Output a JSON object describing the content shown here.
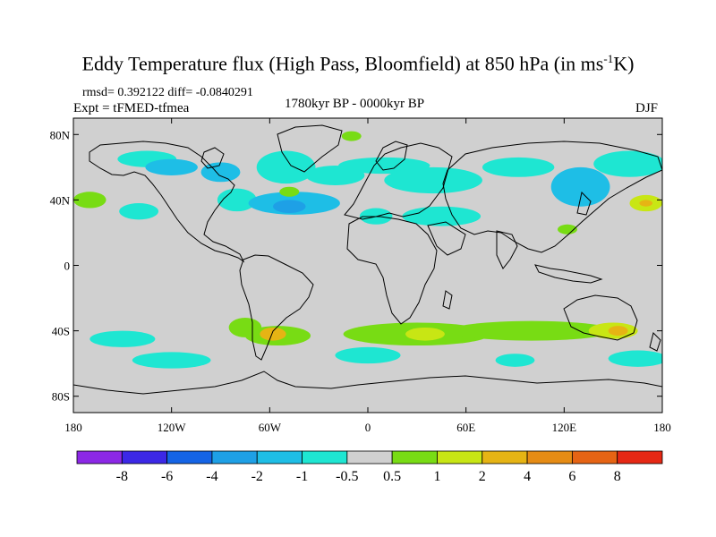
{
  "title": "Eddy Temperature flux (High Pass, Bloomfield) at 850 hPa (in ms",
  "title_sup": "-1",
  "title_end": "K)",
  "stats": "rmsd= 0.392122 diff= -0.0840291",
  "experiment": "Expt = tFMED-tfmea",
  "period": "1780kyr BP - 0000kyr BP",
  "season": "DJF",
  "map": {
    "lon_range": [
      -180,
      180
    ],
    "lat_range": [
      -90,
      90
    ],
    "lon_ticks": [
      "180",
      "120W",
      "60W",
      "0",
      "60E",
      "120E",
      "180"
    ],
    "lat_ticks": [
      "80N",
      "40N",
      "0",
      "40S",
      "80S"
    ],
    "background_color": "#d0d0d0"
  },
  "colorbar": {
    "labels": [
      "-8",
      "-6",
      "-4",
      "-2",
      "-1",
      "-0.5",
      "0.5",
      "1",
      "2",
      "4",
      "6",
      "8"
    ],
    "colors": [
      "#8c28e6",
      "#3c28e6",
      "#1464e6",
      "#1ea0e6",
      "#1ebee6",
      "#1ee6d2",
      "#d0d0d0",
      "#78dc14",
      "#c8e614",
      "#e6b414",
      "#e68c14",
      "#e66414",
      "#e62814"
    ]
  },
  "anomalies": [
    {
      "lon": -135,
      "lat": 65,
      "rlon": 18,
      "rlat": 5,
      "value": -0.7
    },
    {
      "lon": -120,
      "lat": 60,
      "rlon": 16,
      "rlat": 5,
      "value": -1.5
    },
    {
      "lon": -90,
      "lat": 57,
      "rlon": 12,
      "rlat": 6,
      "value": -1.5
    },
    {
      "lon": -80,
      "lat": 40,
      "rlon": 12,
      "rlat": 7,
      "value": -0.7
    },
    {
      "lon": -45,
      "lat": 38,
      "rlon": 28,
      "rlat": 7,
      "value": -1.2
    },
    {
      "lon": -48,
      "lat": 36,
      "rlon": 10,
      "rlat": 4,
      "value": -2.5
    },
    {
      "lon": -50,
      "lat": 60,
      "rlon": 18,
      "rlat": 10,
      "value": -0.7
    },
    {
      "lon": -20,
      "lat": 55,
      "rlon": 18,
      "rlat": 6,
      "value": -0.7
    },
    {
      "lon": 10,
      "lat": 61,
      "rlon": 28,
      "rlat": 5,
      "value": -0.7
    },
    {
      "lon": 40,
      "lat": 52,
      "rlon": 30,
      "rlat": 8,
      "value": -0.7
    },
    {
      "lon": 92,
      "lat": 60,
      "rlon": 22,
      "rlat": 6,
      "value": -0.7
    },
    {
      "lon": 130,
      "lat": 48,
      "rlon": 18,
      "rlat": 12,
      "value": -1.2
    },
    {
      "lon": 160,
      "lat": 62,
      "rlon": 22,
      "rlat": 8,
      "value": -0.7
    },
    {
      "lon": 45,
      "lat": 30,
      "rlon": 24,
      "rlat": 6,
      "value": -0.7
    },
    {
      "lon": 5,
      "lat": 30,
      "rlon": 10,
      "rlat": 5,
      "value": -0.7
    },
    {
      "lon": -140,
      "lat": 33,
      "rlon": 12,
      "rlat": 5,
      "value": -0.7
    },
    {
      "lon": -170,
      "lat": 40,
      "rlon": 10,
      "rlat": 5,
      "value": 0.7
    },
    {
      "lon": -48,
      "lat": 45,
      "rlon": 6,
      "rlat": 3,
      "value": 0.7
    },
    {
      "lon": -10,
      "lat": 79,
      "rlon": 6,
      "rlat": 3,
      "value": 0.7
    },
    {
      "lon": 170,
      "lat": 38,
      "rlon": 10,
      "rlat": 5,
      "value": 1.2
    },
    {
      "lon": 170,
      "lat": 38,
      "rlon": 4,
      "rlat": 2,
      "value": 2.5
    },
    {
      "lon": 122,
      "lat": 22,
      "rlon": 6,
      "rlat": 3,
      "value": 0.7
    },
    {
      "lon": -150,
      "lat": -45,
      "rlon": 20,
      "rlat": 5,
      "value": -0.7
    },
    {
      "lon": -120,
      "lat": -58,
      "rlon": 24,
      "rlat": 5,
      "value": -0.7
    },
    {
      "lon": -75,
      "lat": -38,
      "rlon": 10,
      "rlat": 6,
      "value": 0.7
    },
    {
      "lon": -55,
      "lat": -43,
      "rlon": 20,
      "rlat": 6,
      "value": 0.8
    },
    {
      "lon": -58,
      "lat": -42,
      "rlon": 8,
      "rlat": 4,
      "value": 2.5
    },
    {
      "lon": 30,
      "lat": -42,
      "rlon": 45,
      "rlat": 7,
      "value": 0.8
    },
    {
      "lon": 35,
      "lat": -42,
      "rlon": 12,
      "rlat": 4,
      "value": 1.5
    },
    {
      "lon": 0,
      "lat": -55,
      "rlon": 20,
      "rlat": 5,
      "value": -0.7
    },
    {
      "lon": 90,
      "lat": -58,
      "rlon": 12,
      "rlat": 4,
      "value": -0.7
    },
    {
      "lon": 100,
      "lat": -40,
      "rlon": 50,
      "rlat": 6,
      "value": 0.7
    },
    {
      "lon": 150,
      "lat": -40,
      "rlon": 15,
      "rlat": 5,
      "value": 1.2
    },
    {
      "lon": 153,
      "lat": -40,
      "rlon": 6,
      "rlat": 3,
      "value": 2.5
    },
    {
      "lon": 165,
      "lat": -57,
      "rlon": 18,
      "rlat": 5,
      "value": -0.7
    }
  ]
}
